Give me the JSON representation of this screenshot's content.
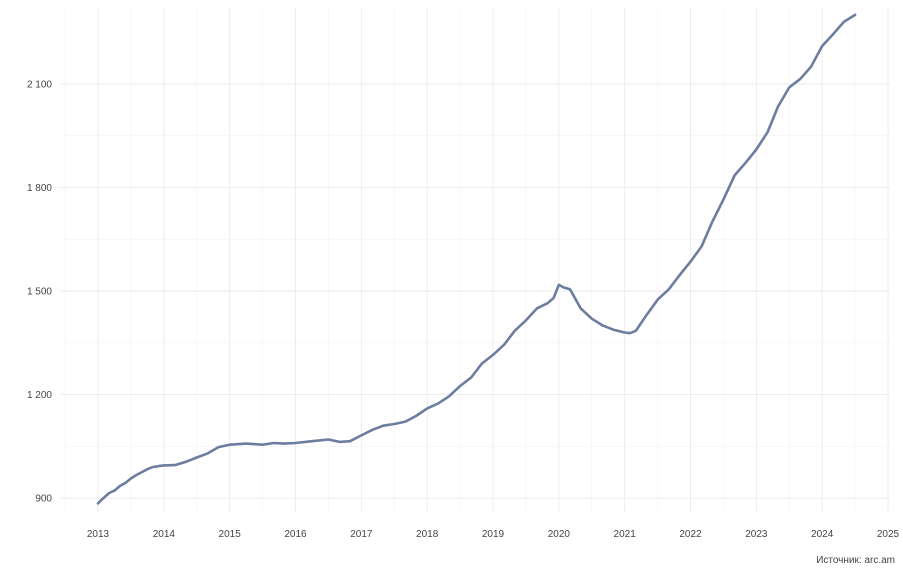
{
  "chart_data": {
    "type": "line",
    "title": "",
    "xlabel": "",
    "ylabel": "",
    "x_ticks": [
      "2013",
      "2014",
      "2015",
      "2016",
      "2017",
      "2018",
      "2019",
      "2020",
      "2021",
      "2022",
      "2023",
      "2024",
      "2025"
    ],
    "y_ticks": [
      900,
      1200,
      1500,
      1800,
      2100
    ],
    "y_tick_labels": [
      "900",
      "1 200",
      "1 500",
      "1 800",
      "2 100"
    ],
    "xlim": [
      2013,
      2025
    ],
    "ylim": [
      860,
      2320
    ],
    "grid": true,
    "line_color": "#6d7d9f",
    "series": [
      {
        "x": [
          2013.0,
          2013.08,
          2013.17,
          2013.25,
          2013.33,
          2013.42,
          2013.5,
          2013.58,
          2013.67,
          2013.75,
          2013.83,
          2013.92,
          2014.0,
          2014.17,
          2014.33,
          2014.5,
          2014.67,
          2014.83,
          2015.0,
          2015.25,
          2015.5,
          2015.67,
          2015.83,
          2016.0,
          2016.25,
          2016.5,
          2016.67,
          2016.83,
          2017.0,
          2017.17,
          2017.33,
          2017.5,
          2017.67,
          2017.83,
          2018.0,
          2018.17,
          2018.33,
          2018.5,
          2018.67,
          2018.83,
          2019.0,
          2019.17,
          2019.33,
          2019.5,
          2019.67,
          2019.83,
          2019.92,
          2020.0,
          2020.08,
          2020.17,
          2020.33,
          2020.5,
          2020.67,
          2020.83,
          2021.0,
          2021.08,
          2021.17,
          2021.33,
          2021.5,
          2021.67,
          2021.83,
          2022.0,
          2022.17,
          2022.33,
          2022.5,
          2022.67,
          2022.83,
          2023.0,
          2023.17,
          2023.33,
          2023.5,
          2023.67,
          2023.83,
          2024.0,
          2024.17,
          2024.33,
          2024.5
        ],
        "y": [
          885,
          900,
          915,
          922,
          935,
          945,
          957,
          967,
          976,
          984,
          990,
          993,
          995,
          996,
          1005,
          1018,
          1030,
          1048,
          1055,
          1058,
          1055,
          1060,
          1058,
          1060,
          1065,
          1070,
          1063,
          1065,
          1082,
          1098,
          1110,
          1115,
          1122,
          1138,
          1160,
          1175,
          1195,
          1225,
          1250,
          1290,
          1315,
          1345,
          1385,
          1415,
          1450,
          1465,
          1480,
          1518,
          1510,
          1505,
          1450,
          1420,
          1400,
          1388,
          1380,
          1378,
          1385,
          1430,
          1475,
          1505,
          1545,
          1585,
          1630,
          1700,
          1765,
          1835,
          1870,
          1910,
          1960,
          2035,
          2090,
          2115,
          2150,
          2210,
          2245,
          2280,
          2300
        ]
      }
    ],
    "source": "Источник: arc.am"
  }
}
